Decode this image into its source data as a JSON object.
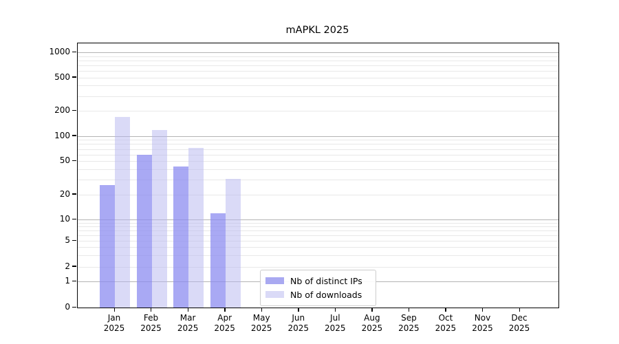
{
  "chart_data": {
    "type": "bar",
    "title": "mAPKL 2025",
    "months": [
      "Jan",
      "Feb",
      "Mar",
      "Apr",
      "May",
      "Jun",
      "Jul",
      "Aug",
      "Sep",
      "Oct",
      "Nov",
      "Dec"
    ],
    "year": "2025",
    "categories": [
      "Jan 2025",
      "Feb 2025",
      "Mar 2025",
      "Apr 2025",
      "May 2025",
      "Jun 2025",
      "Jul 2025",
      "Aug 2025",
      "Sep 2025",
      "Oct 2025",
      "Nov 2025",
      "Dec 2025"
    ],
    "series": [
      {
        "name": "Nb of distinct IPs",
        "color": "#a9a9f1",
        "fill": "rgba(140,140,240,0.75)",
        "values": [
          26,
          60,
          43,
          12,
          0,
          0,
          0,
          0,
          0,
          0,
          0,
          0
        ]
      },
      {
        "name": "Nb of downloads",
        "color": "#dadaf7",
        "fill": "rgba(181,181,239,0.5)",
        "values": [
          170,
          118,
          72,
          31,
          0,
          0,
          0,
          0,
          0,
          0,
          0,
          0
        ]
      }
    ],
    "yscale": "symlog",
    "ylim": [
      0,
      1280
    ],
    "ytick_labels": [
      "1000",
      "500",
      "200",
      "100",
      "50",
      "20",
      "10",
      "5",
      "2",
      "1",
      "0"
    ],
    "major_gridlines": [
      1,
      10,
      100,
      1000
    ],
    "minor_gridlines": [
      2,
      3,
      4,
      5,
      6,
      7,
      8,
      9,
      20,
      30,
      40,
      50,
      60,
      70,
      80,
      90,
      200,
      300,
      400,
      500,
      600,
      700,
      800,
      900
    ],
    "grid": true,
    "legend_position": "lower center",
    "colors": {
      "axis": "#000000",
      "major_grid": "#b3b3b3",
      "minor_grid": "#e8e8e8",
      "background": "#ffffff",
      "legend_border": "#cccccc"
    }
  }
}
